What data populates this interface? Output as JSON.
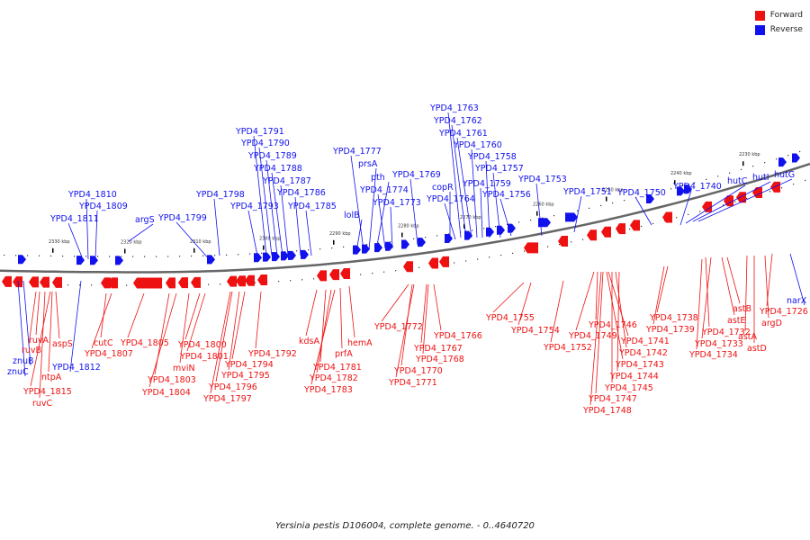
{
  "legend": {
    "forward": {
      "label": "Forward",
      "color": "#ee1111"
    },
    "reverse": {
      "label": "Reverse",
      "color": "#1111ee"
    }
  },
  "caption": "Yersinia pestis D106004, complete genome. - 0..4640720",
  "scale": [
    "2330 kbp",
    "2320 kbp",
    "2310 kbp",
    "2300 kbp",
    "2290 kbp",
    "2280 kbp",
    "2270 kbp",
    "2260 kbp",
    "2250 kbp",
    "2240 kbp",
    "2230 kbp"
  ],
  "reverse_labels": [
    "YPD4_1811",
    "YPD4_1810",
    "YPD4_1809",
    "argS",
    "YPD4_1799",
    "YPD4_1798",
    "YPD4_1793",
    "YPD4_1791",
    "YPD4_1790",
    "YPD4_1789",
    "YPD4_1788",
    "YPD4_1787",
    "YPD4_1786",
    "YPD4_1785",
    "lolB",
    "YPD4_1777",
    "prsA",
    "pth",
    "YPD4_1774",
    "YPD4_1773",
    "YPD4_1769",
    "copR",
    "YPD4_1764",
    "YPD4_1763",
    "YPD4_1762",
    "YPD4_1761",
    "YPD4_1760",
    "YPD4_1759",
    "YPD4_1758",
    "YPD4_1757",
    "YPD4_1756",
    "YPD4_1753",
    "YPD4_1751",
    "YPD4_1750",
    "YPD4_1740",
    "hutC",
    "hutI",
    "hutG",
    "znuB",
    "znuC",
    "YPD4_1812",
    "narX"
  ],
  "forward_labels": [
    "ruvA",
    "ruvB",
    "aspS",
    "ntpA",
    "YPD4_1815",
    "ruvC",
    "cutC",
    "YPD4_1807",
    "YPD4_1805",
    "YPD4_1803",
    "YPD4_1804",
    "mviN",
    "YPD4_1800",
    "YPD4_1801",
    "YPD4_1792",
    "YPD4_1794",
    "YPD4_1795",
    "YPD4_1796",
    "YPD4_1797",
    "kdsA",
    "YPD4_1781",
    "prfA",
    "hemA",
    "YPD4_1782",
    "YPD4_1783",
    "YPD4_1772",
    "YPD4_1767",
    "YPD4_1766",
    "YPD4_1768",
    "YPD4_1770",
    "YPD4_1771",
    "YPD4_1755",
    "YPD4_1754",
    "YPD4_1752",
    "YPD4_1749",
    "YPD4_1746",
    "YPD4_1738",
    "YPD4_1739",
    "YPD4_1741",
    "YPD4_1742",
    "YPD4_1743",
    "YPD4_1744",
    "YPD4_1745",
    "YPD4_1747",
    "YPD4_1748",
    "YPD4_1732",
    "YPD4_1733",
    "YPD4_1734",
    "astB",
    "astE",
    "argD",
    "astA",
    "astD",
    "YPD4_1726"
  ]
}
